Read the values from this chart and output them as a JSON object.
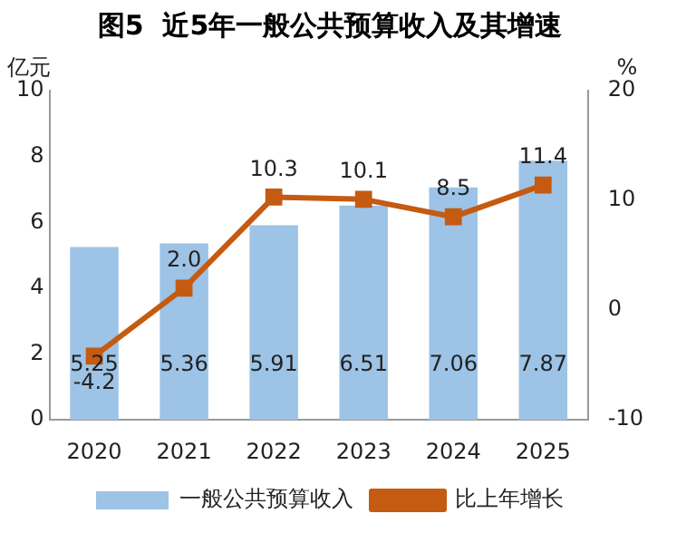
{
  "chart_data": {
    "type": "bar",
    "title": "图5  近5年一般公共预算收入及其增速",
    "ylabel": "亿元",
    "y2label": "%",
    "categories": [
      "2020",
      "2021",
      "2022",
      "2023",
      "2024",
      "2025"
    ],
    "series": [
      {
        "name": "一般公共预算收入",
        "color": "#9dc3e6",
        "values": [
          5.25,
          5.36,
          5.91,
          6.51,
          7.06,
          7.87
        ]
      },
      {
        "name": "比上年增长",
        "type": "line",
        "axis": "y2",
        "color": "#c55a11",
        "marker": "square",
        "values": [
          -4.2,
          2.0,
          10.3,
          10.1,
          8.5,
          11.4
        ],
        "value_labels": [
          "-4.2",
          "2.0",
          "10.3",
          "10.1",
          "8.5",
          "11.4"
        ]
      }
    ],
    "ylim": [
      0,
      10
    ],
    "yticks": [
      0,
      2,
      4,
      6,
      8,
      10
    ],
    "y2lim": [
      -10,
      20
    ],
    "y2ticks": [
      -10,
      0,
      10,
      20
    ],
    "data_labels": true,
    "legend": "bottom",
    "grid": false
  }
}
